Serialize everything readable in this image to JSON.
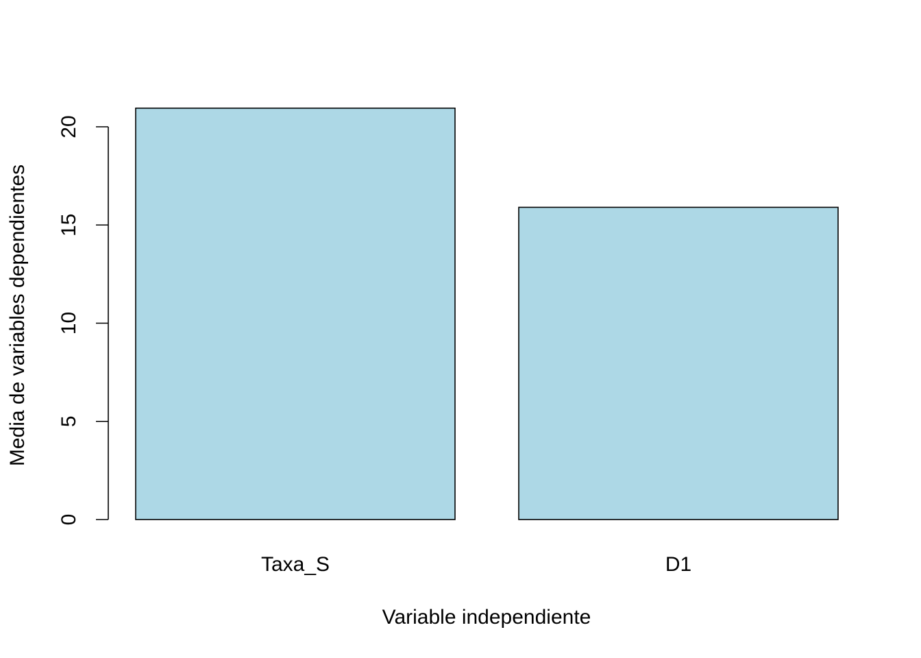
{
  "chart_data": {
    "type": "bar",
    "title": "",
    "xlabel": "Variable independiente",
    "ylabel": "Media de variables dependientes",
    "categories": [
      "Taxa_S",
      "D1"
    ],
    "values": [
      20.95,
      15.9
    ],
    "ylim": [
      0,
      20
    ],
    "yticks": [
      0,
      5,
      10,
      15,
      20
    ],
    "bar_color": "#ADD8E6",
    "border_color": "#000000",
    "grid": false,
    "legend": "none"
  }
}
